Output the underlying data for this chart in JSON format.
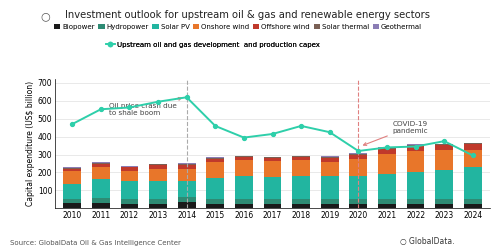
{
  "years": [
    2010,
    2011,
    2012,
    2013,
    2014,
    2015,
    2016,
    2017,
    2018,
    2019,
    2020,
    2021,
    2022,
    2023,
    2024
  ],
  "biopower": [
    28,
    28,
    26,
    26,
    38,
    26,
    26,
    26,
    26,
    26,
    26,
    26,
    26,
    26,
    26
  ],
  "hydropower": [
    22,
    28,
    25,
    25,
    24,
    26,
    26,
    26,
    26,
    25,
    25,
    25,
    25,
    25,
    25
  ],
  "solar_pv": [
    88,
    108,
    100,
    100,
    88,
    118,
    128,
    125,
    128,
    128,
    128,
    142,
    152,
    162,
    178
  ],
  "onshore_wind": [
    72,
    68,
    60,
    70,
    72,
    88,
    88,
    85,
    88,
    82,
    98,
    112,
    118,
    112,
    98
  ],
  "offshore_wind": [
    12,
    18,
    18,
    20,
    22,
    20,
    18,
    18,
    18,
    22,
    22,
    28,
    28,
    28,
    32
  ],
  "solar_thermal": [
    4,
    4,
    4,
    4,
    4,
    4,
    4,
    4,
    4,
    4,
    4,
    4,
    4,
    4,
    4
  ],
  "geothermal": [
    4,
    4,
    4,
    4,
    4,
    4,
    4,
    4,
    4,
    4,
    4,
    4,
    4,
    4,
    4
  ],
  "upstream_capex": [
    470,
    553,
    563,
    595,
    620,
    460,
    395,
    415,
    460,
    425,
    320,
    340,
    345,
    375,
    295
  ],
  "colors": {
    "biopower": "#1a1a1a",
    "hydropower": "#2e8b74",
    "solar_pv": "#22b5a0",
    "onshore_wind": "#e8762a",
    "offshore_wind": "#c0392b",
    "solar_thermal": "#7a6055",
    "geothermal": "#8b7db5"
  },
  "line_color": "#2ecfaa",
  "title": "Investment outlook for upstream oil & gas and renewable energy sectors",
  "ylabel": "Capital expenditure (US$ billion)",
  "source": "Source: GlobalData Oil & Gas Intelligence Center",
  "ylim": [
    0,
    720
  ],
  "yticks": [
    100,
    200,
    300,
    400,
    500,
    600,
    700
  ],
  "annotation1_text": "Oil price crash due\nto shale boom",
  "annotation2_text": "COVID-19\npandemic",
  "dashed_line_color_1": "#aaaaaa",
  "dashed_line_color_2": "#e08080",
  "arrow_color": "#e08080"
}
